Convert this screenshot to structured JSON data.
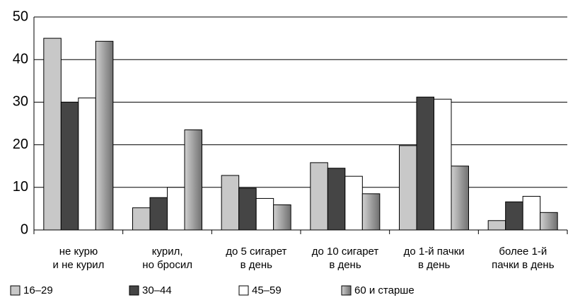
{
  "chart_data": {
    "type": "bar",
    "categories": [
      "не курю\nи не курил",
      "курил,\nно бросил",
      "до 5 сигарет\nв день",
      "до 10 сигарет\nв день",
      "до 1-й пачки\nв день",
      "более 1-й\nпачки в день"
    ],
    "series": [
      {
        "name": "16–29",
        "color": "#c8c8c8",
        "values": [
          45,
          5.2,
          12.8,
          15.8,
          19.8,
          2.2
        ]
      },
      {
        "name": "30–44",
        "color": "#454545",
        "values": [
          30,
          7.6,
          9.8,
          14.5,
          31.2,
          6.6
        ]
      },
      {
        "name": "45–59",
        "color": "#ffffff",
        "values": [
          31,
          10,
          7.4,
          12.6,
          30.7,
          7.9
        ]
      },
      {
        "name": "60 и старше",
        "color": "#a0a0a0",
        "values": [
          44.3,
          23.5,
          5.9,
          8.5,
          15,
          4.1
        ]
      }
    ],
    "ylim": [
      0,
      50
    ],
    "yticks": [
      0,
      10,
      20,
      30,
      40,
      50
    ],
    "grid": true,
    "legend": "bottom"
  }
}
